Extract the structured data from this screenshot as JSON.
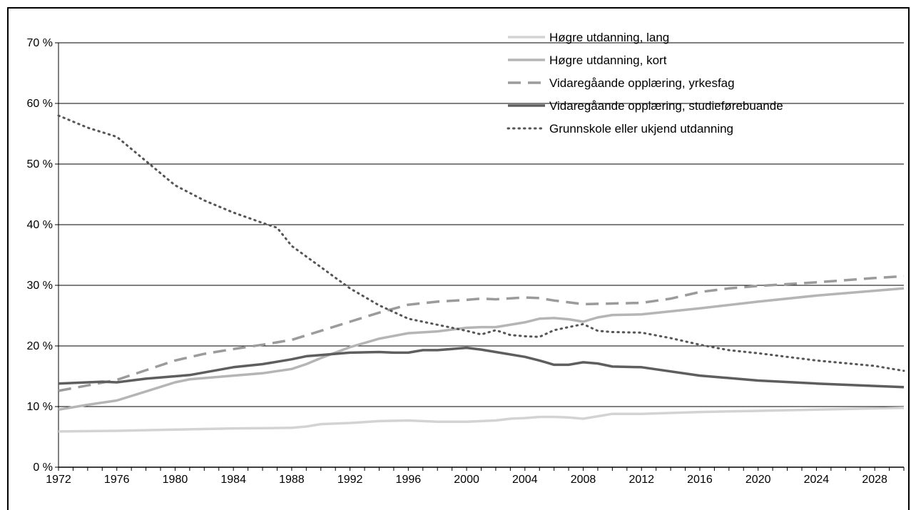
{
  "chart_data": {
    "type": "line",
    "title": "",
    "xlabel": "",
    "ylabel": "",
    "xlim": [
      1972,
      2030
    ],
    "ylim": [
      0,
      70
    ],
    "yticks": [
      "0 %",
      "10 %",
      "20 %",
      "30 %",
      "40 %",
      "50 %",
      "60 %",
      "70 %"
    ],
    "xticks": [
      "1972",
      "1976",
      "1980",
      "1984",
      "1988",
      "1992",
      "1996",
      "2000",
      "2004",
      "2008",
      "2012",
      "2016",
      "2020",
      "2024",
      "2028"
    ],
    "grid": "horizontal",
    "legend_position": "top-right",
    "series": [
      {
        "name": "Høgre utdanning, lang",
        "color": "#d3d3d3",
        "style": "solid",
        "x": [
          1972,
          1976,
          1980,
          1984,
          1988,
          1989,
          1990,
          1992,
          1994,
          1996,
          1998,
          2000,
          2002,
          2003,
          2004,
          2005,
          2006,
          2007,
          2008,
          2009,
          2010,
          2012,
          2016,
          2020,
          2024,
          2028,
          2030
        ],
        "y": [
          5.9,
          6.0,
          6.2,
          6.4,
          6.5,
          6.7,
          7.1,
          7.3,
          7.6,
          7.7,
          7.5,
          7.5,
          7.7,
          8.0,
          8.1,
          8.3,
          8.3,
          8.2,
          8.0,
          8.4,
          8.8,
          8.8,
          9.1,
          9.3,
          9.5,
          9.7,
          9.8
        ]
      },
      {
        "name": "Høgre utdanning, kort",
        "color": "#b5b5b5",
        "style": "solid",
        "x": [
          1972,
          1974,
          1976,
          1978,
          1980,
          1981,
          1984,
          1986,
          1988,
          1989,
          1990,
          1992,
          1994,
          1996,
          1998,
          2000,
          2001,
          2002,
          2004,
          2005,
          2006,
          2007,
          2008,
          2009,
          2010,
          2012,
          2016,
          2020,
          2024,
          2028,
          2030
        ],
        "y": [
          9.5,
          10.3,
          11.0,
          12.5,
          14.0,
          14.5,
          15.1,
          15.5,
          16.2,
          17.0,
          18.0,
          19.8,
          21.2,
          22.1,
          22.4,
          23.0,
          23.1,
          23.1,
          23.9,
          24.5,
          24.6,
          24.4,
          24.0,
          24.7,
          25.1,
          25.2,
          26.2,
          27.3,
          28.3,
          29.1,
          29.5
        ]
      },
      {
        "name": "Vidaregåande opplæring, yrkesfag",
        "color": "#9b9b9b",
        "style": "dashed",
        "x": [
          1972,
          1974,
          1976,
          1978,
          1980,
          1982,
          1984,
          1986,
          1988,
          1990,
          1992,
          1994,
          1996,
          1998,
          2000,
          2001,
          2002,
          2004,
          2005,
          2006,
          2008,
          2010,
          2012,
          2014,
          2016,
          2018,
          2020,
          2024,
          2028,
          2030
        ],
        "y": [
          12.6,
          13.5,
          14.4,
          16.0,
          17.6,
          18.7,
          19.5,
          20.2,
          21.0,
          22.5,
          24.0,
          25.5,
          26.8,
          27.3,
          27.6,
          27.8,
          27.7,
          28.0,
          27.9,
          27.5,
          26.9,
          27.0,
          27.1,
          27.8,
          28.9,
          29.5,
          29.9,
          30.5,
          31.2,
          31.5
        ]
      },
      {
        "name": "Vidaregåande opplæring, studieførebuande",
        "color": "#5e5e5e",
        "style": "solid",
        "x": [
          1972,
          1974,
          1975,
          1976,
          1978,
          1980,
          1981,
          1984,
          1986,
          1988,
          1989,
          1990,
          1992,
          1994,
          1995,
          1996,
          1997,
          1998,
          2000,
          2001,
          2002,
          2004,
          2005,
          2006,
          2007,
          2008,
          2009,
          2010,
          2012,
          2016,
          2020,
          2024,
          2028,
          2030
        ],
        "y": [
          13.8,
          14.0,
          14.1,
          14.0,
          14.6,
          15.0,
          15.2,
          16.5,
          17.0,
          17.8,
          18.3,
          18.5,
          18.9,
          19.0,
          18.9,
          18.9,
          19.3,
          19.3,
          19.7,
          19.4,
          19.0,
          18.2,
          17.6,
          16.9,
          16.9,
          17.3,
          17.1,
          16.6,
          16.5,
          15.1,
          14.3,
          13.8,
          13.4,
          13.2
        ]
      },
      {
        "name": "Grunnskole eller ukjend utdanning",
        "color": "#555555",
        "style": "dotted",
        "x": [
          1972,
          1974,
          1976,
          1978,
          1980,
          1982,
          1984,
          1986,
          1987,
          1988,
          1990,
          1992,
          1994,
          1996,
          1998,
          2000,
          2001,
          2002,
          2003,
          2004,
          2005,
          2006,
          2007,
          2008,
          2009,
          2010,
          2012,
          2014,
          2016,
          2018,
          2020,
          2024,
          2028,
          2030
        ],
        "y": [
          58.0,
          56.0,
          54.5,
          50.5,
          46.5,
          44.0,
          42.0,
          40.3,
          39.5,
          36.5,
          33.0,
          29.5,
          26.7,
          24.5,
          23.5,
          22.5,
          21.9,
          22.6,
          21.8,
          21.6,
          21.5,
          22.6,
          23.1,
          23.6,
          22.5,
          22.3,
          22.2,
          21.3,
          20.2,
          19.3,
          18.8,
          17.6,
          16.7,
          15.9
        ]
      }
    ]
  }
}
